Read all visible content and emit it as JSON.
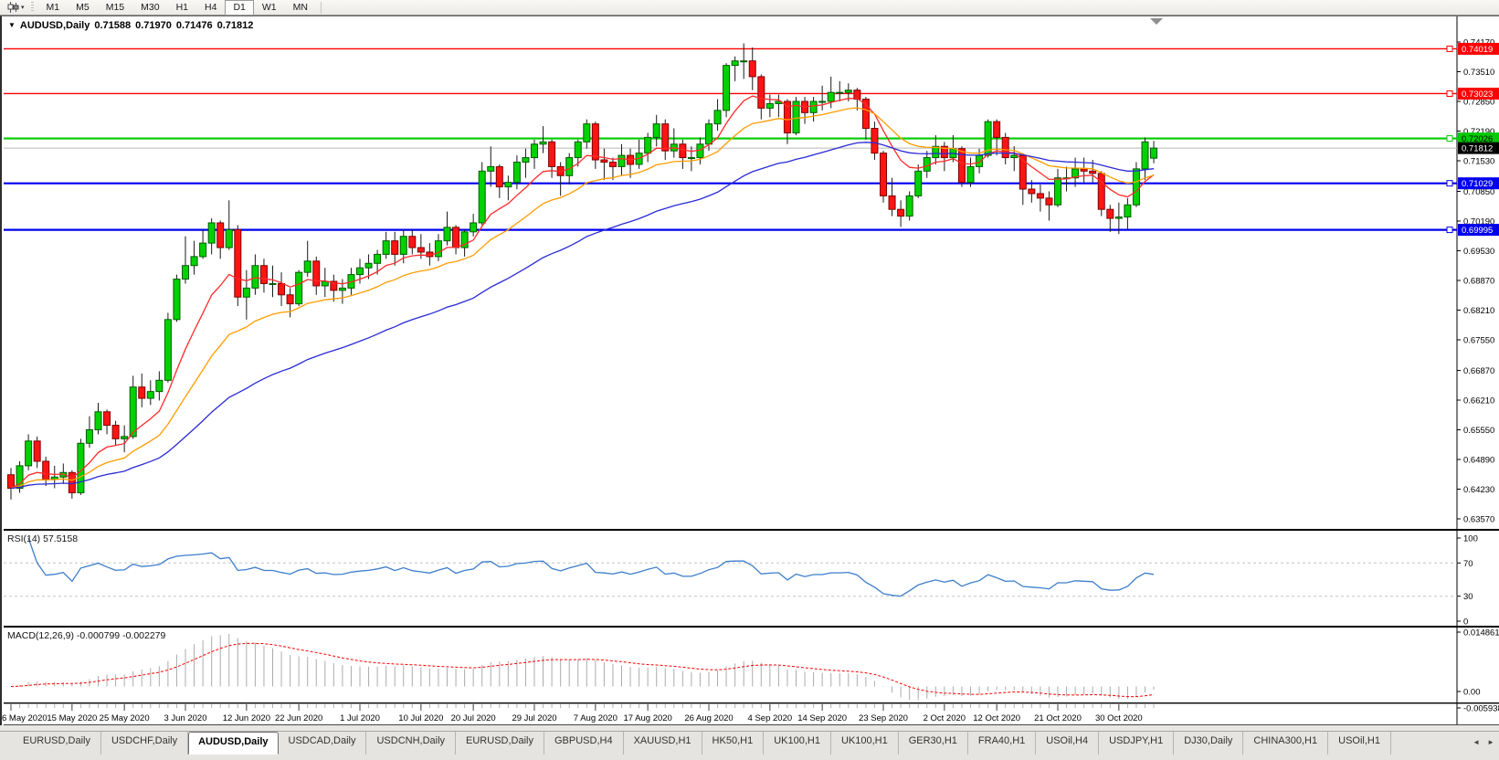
{
  "toolbar": {
    "chart_type_caret": "▾",
    "timeframes": [
      "M1",
      "M5",
      "M15",
      "M30",
      "H1",
      "H4",
      "D1",
      "W1",
      "MN"
    ],
    "active_timeframe": "D1"
  },
  "main_chart": {
    "title": {
      "collapse_icon": "▼",
      "symbol": "AUDUSD,Daily",
      "open": "0.71588",
      "high": "0.71970",
      "low": "0.71476",
      "close": "0.71812"
    },
    "hlines": [
      {
        "value": 0.74019,
        "label": "0.74019",
        "color": "#ff0000",
        "text_color": "#ffffff",
        "width": 1.4
      },
      {
        "value": 0.73023,
        "label": "0.73023",
        "color": "#ff0000",
        "text_color": "#ffffff",
        "width": 1.4
      },
      {
        "value": 0.72026,
        "label": "0.72026",
        "color": "#00cc00",
        "text_color": "#000000",
        "width": 2.2
      },
      {
        "value": 0.71029,
        "label": "0.71029",
        "color": "#0000ee",
        "text_color": "#ffffff",
        "width": 2.2
      },
      {
        "value": 0.69995,
        "label": "0.69995",
        "color": "#0000ee",
        "text_color": "#ffffff",
        "width": 2.2
      }
    ],
    "current_price": {
      "value": 0.71812,
      "label": "0.71812",
      "box_color": "#000000",
      "text_color": "#ffffff",
      "line_color": "#b8b8b8"
    },
    "y_ticks": [
      "0.74170",
      "0.73510",
      "0.72850",
      "0.72190",
      "0.71530",
      "0.70850",
      "0.70190",
      "0.69530",
      "0.68870",
      "0.68210",
      "0.67550",
      "0.66870",
      "0.66210",
      "0.65550",
      "0.64890",
      "0.64230",
      "0.63570"
    ]
  },
  "rsi_panel": {
    "label": "RSI(14) 57.5158",
    "levels": [
      "100",
      "70",
      "30",
      "0"
    ],
    "level_values": [
      100,
      70,
      30,
      0
    ],
    "dashed_levels": [
      70,
      30
    ],
    "line_color": "#3d7ecb"
  },
  "macd_panel": {
    "label": "MACD(12,26,9) -0.000799 -0.002279",
    "levels": [
      "0.014861",
      "0.00",
      "-0.005938"
    ],
    "histogram_color": "#ababab",
    "signal_color": "#ff0000"
  },
  "time_axis": {
    "dates": [
      {
        "label": "6 May 2020",
        "bar": 0
      },
      {
        "label": "15 May 2020",
        "bar": 7
      },
      {
        "label": "25 May 2020",
        "bar": 13
      },
      {
        "label": "3 Jun 2020",
        "bar": 20
      },
      {
        "label": "12 Jun 2020",
        "bar": 27
      },
      {
        "label": "22 Jun 2020",
        "bar": 33
      },
      {
        "label": "1 Jul 2020",
        "bar": 40
      },
      {
        "label": "10 Jul 2020",
        "bar": 47
      },
      {
        "label": "20 Jul 2020",
        "bar": 53
      },
      {
        "label": "29 Jul 2020",
        "bar": 60
      },
      {
        "label": "7 Aug 2020",
        "bar": 67
      },
      {
        "label": "17 Aug 2020",
        "bar": 73
      },
      {
        "label": "26 Aug 2020",
        "bar": 80
      },
      {
        "label": "4 Sep 2020",
        "bar": 87
      },
      {
        "label": "14 Sep 2020",
        "bar": 93
      },
      {
        "label": "23 Sep 2020",
        "bar": 100
      },
      {
        "label": "2 Oct 2020",
        "bar": 107
      },
      {
        "label": "12 Oct 2020",
        "bar": 113
      },
      {
        "label": "21 Oct 2020",
        "bar": 120
      },
      {
        "label": "30 Oct 2020",
        "bar": 127
      }
    ]
  },
  "tab_bar": {
    "tabs": [
      "EURUSD,Daily",
      "USDCHF,Daily",
      "AUDUSD,Daily",
      "USDCAD,Daily",
      "USDCNH,Daily",
      "EURUSD,Daily",
      "GBPUSD,H4",
      "XAUUSD,H1",
      "HK50,H1",
      "UK100,H1",
      "UK100,H1",
      "GER30,H1",
      "FRA40,H1",
      "USOil,H4",
      "USDJPY,H1",
      "DJ30,Daily",
      "CHINA300,H1",
      "USOil,H1"
    ],
    "active_index": 2,
    "scroll_left_glyph": "◄",
    "scroll_right_glyph": "►"
  },
  "chart_data": {
    "type": "candlestick",
    "symbol": "AUDUSD",
    "timeframe": "Daily",
    "up_color": "#00d200",
    "up_border": "#005c00",
    "down_color": "#ff1414",
    "down_border": "#7d0000",
    "wick_color": "#1a1a1a",
    "ma_overlays": [
      {
        "period": 9,
        "color": "#ff2a2a"
      },
      {
        "period": 20,
        "color": "#ff9c00"
      },
      {
        "period": 45,
        "color": "#2a2ad6"
      }
    ],
    "candles": [
      [
        0.6455,
        0.647,
        0.64,
        0.6425
      ],
      [
        0.6425,
        0.6485,
        0.6415,
        0.6475
      ],
      [
        0.6475,
        0.6545,
        0.6465,
        0.653
      ],
      [
        0.653,
        0.654,
        0.647,
        0.6485
      ],
      [
        0.6485,
        0.6495,
        0.643,
        0.6445
      ],
      [
        0.6445,
        0.6475,
        0.6425,
        0.645
      ],
      [
        0.645,
        0.648,
        0.6435,
        0.646
      ],
      [
        0.646,
        0.6465,
        0.6402,
        0.6415
      ],
      [
        0.6415,
        0.6535,
        0.641,
        0.6525
      ],
      [
        0.6525,
        0.6585,
        0.6515,
        0.6555
      ],
      [
        0.6555,
        0.6615,
        0.6545,
        0.6595
      ],
      [
        0.6595,
        0.66,
        0.6545,
        0.6565
      ],
      [
        0.6565,
        0.6575,
        0.652,
        0.6535
      ],
      [
        0.6535,
        0.6565,
        0.6505,
        0.654
      ],
      [
        0.654,
        0.6675,
        0.6535,
        0.665
      ],
      [
        0.665,
        0.668,
        0.6605,
        0.6625
      ],
      [
        0.6625,
        0.6665,
        0.661,
        0.664
      ],
      [
        0.664,
        0.6685,
        0.662,
        0.6665
      ],
      [
        0.6665,
        0.6815,
        0.666,
        0.68
      ],
      [
        0.68,
        0.69,
        0.6795,
        0.689
      ],
      [
        0.689,
        0.6985,
        0.688,
        0.692
      ],
      [
        0.692,
        0.6975,
        0.69,
        0.694
      ],
      [
        0.694,
        0.7,
        0.6935,
        0.697
      ],
      [
        0.697,
        0.7025,
        0.6945,
        0.7015
      ],
      [
        0.7015,
        0.702,
        0.6935,
        0.696
      ],
      [
        0.696,
        0.7065,
        0.6955,
        0.7
      ],
      [
        0.7,
        0.701,
        0.683,
        0.685
      ],
      [
        0.685,
        0.691,
        0.68,
        0.687
      ],
      [
        0.687,
        0.6945,
        0.6855,
        0.692
      ],
      [
        0.692,
        0.6935,
        0.686,
        0.688
      ],
      [
        0.688,
        0.692,
        0.685,
        0.688
      ],
      [
        0.688,
        0.6905,
        0.683,
        0.6855
      ],
      [
        0.6855,
        0.687,
        0.6805,
        0.6835
      ],
      [
        0.6835,
        0.691,
        0.683,
        0.6905
      ],
      [
        0.6905,
        0.6975,
        0.6895,
        0.693
      ],
      [
        0.693,
        0.694,
        0.6855,
        0.6875
      ],
      [
        0.6875,
        0.6915,
        0.685,
        0.6885
      ],
      [
        0.6885,
        0.69,
        0.684,
        0.6865
      ],
      [
        0.6865,
        0.689,
        0.6835,
        0.687
      ],
      [
        0.687,
        0.6915,
        0.6855,
        0.69
      ],
      [
        0.69,
        0.6935,
        0.688,
        0.6915
      ],
      [
        0.6915,
        0.6945,
        0.689,
        0.6925
      ],
      [
        0.6925,
        0.6955,
        0.69,
        0.6945
      ],
      [
        0.6945,
        0.6995,
        0.6935,
        0.6975
      ],
      [
        0.6975,
        0.6995,
        0.692,
        0.6945
      ],
      [
        0.6945,
        0.7,
        0.6925,
        0.6985
      ],
      [
        0.6985,
        0.7,
        0.6945,
        0.696
      ],
      [
        0.696,
        0.699,
        0.6935,
        0.695
      ],
      [
        0.695,
        0.697,
        0.692,
        0.694
      ],
      [
        0.694,
        0.699,
        0.693,
        0.6975
      ],
      [
        0.6975,
        0.704,
        0.6965,
        0.7005
      ],
      [
        0.7005,
        0.701,
        0.6945,
        0.696
      ],
      [
        0.696,
        0.7,
        0.694,
        0.6995
      ],
      [
        0.6995,
        0.7035,
        0.6985,
        0.7015
      ],
      [
        0.7015,
        0.715,
        0.701,
        0.713
      ],
      [
        0.713,
        0.7185,
        0.7095,
        0.714
      ],
      [
        0.714,
        0.7145,
        0.707,
        0.7095
      ],
      [
        0.7095,
        0.712,
        0.7065,
        0.7105
      ],
      [
        0.7105,
        0.7165,
        0.709,
        0.715
      ],
      [
        0.715,
        0.718,
        0.7115,
        0.716
      ],
      [
        0.716,
        0.72,
        0.7135,
        0.719
      ],
      [
        0.719,
        0.723,
        0.717,
        0.7195
      ],
      [
        0.7195,
        0.72,
        0.7115,
        0.714
      ],
      [
        0.714,
        0.715,
        0.7075,
        0.712
      ],
      [
        0.712,
        0.717,
        0.71,
        0.716
      ],
      [
        0.716,
        0.72,
        0.714,
        0.7195
      ],
      [
        0.7195,
        0.7245,
        0.718,
        0.7235
      ],
      [
        0.7235,
        0.724,
        0.7135,
        0.7155
      ],
      [
        0.7155,
        0.718,
        0.711,
        0.715
      ],
      [
        0.715,
        0.716,
        0.711,
        0.714
      ],
      [
        0.714,
        0.719,
        0.712,
        0.7165
      ],
      [
        0.7165,
        0.718,
        0.7115,
        0.7145
      ],
      [
        0.7145,
        0.72,
        0.7135,
        0.717
      ],
      [
        0.717,
        0.7215,
        0.715,
        0.7205
      ],
      [
        0.7205,
        0.7255,
        0.7185,
        0.7235
      ],
      [
        0.7235,
        0.7245,
        0.7155,
        0.7175
      ],
      [
        0.7175,
        0.7225,
        0.716,
        0.719
      ],
      [
        0.719,
        0.72,
        0.7135,
        0.716
      ],
      [
        0.716,
        0.7185,
        0.713,
        0.716
      ],
      [
        0.716,
        0.7205,
        0.7145,
        0.719
      ],
      [
        0.719,
        0.7245,
        0.7175,
        0.7235
      ],
      [
        0.7235,
        0.729,
        0.722,
        0.7265
      ],
      [
        0.7265,
        0.737,
        0.725,
        0.7365
      ],
      [
        0.7365,
        0.7385,
        0.733,
        0.7375
      ],
      [
        0.7375,
        0.7414,
        0.7335,
        0.7375
      ],
      [
        0.7375,
        0.7405,
        0.731,
        0.734
      ],
      [
        0.734,
        0.7345,
        0.7245,
        0.727
      ],
      [
        0.727,
        0.73,
        0.725,
        0.728
      ],
      [
        0.728,
        0.73,
        0.725,
        0.7285
      ],
      [
        0.7285,
        0.729,
        0.719,
        0.7215
      ],
      [
        0.7215,
        0.7295,
        0.721,
        0.7285
      ],
      [
        0.7285,
        0.7295,
        0.7235,
        0.726
      ],
      [
        0.726,
        0.7295,
        0.724,
        0.7285
      ],
      [
        0.7285,
        0.732,
        0.7265,
        0.7285
      ],
      [
        0.7285,
        0.734,
        0.727,
        0.7305
      ],
      [
        0.7305,
        0.733,
        0.7285,
        0.7305
      ],
      [
        0.7305,
        0.7325,
        0.7285,
        0.731
      ],
      [
        0.731,
        0.7315,
        0.7265,
        0.729
      ],
      [
        0.729,
        0.7295,
        0.72,
        0.7225
      ],
      [
        0.7225,
        0.724,
        0.7155,
        0.717
      ],
      [
        0.717,
        0.7175,
        0.706,
        0.7075
      ],
      [
        0.7075,
        0.7115,
        0.703,
        0.7045
      ],
      [
        0.7045,
        0.7065,
        0.7006,
        0.703
      ],
      [
        0.703,
        0.7085,
        0.702,
        0.7075
      ],
      [
        0.7075,
        0.7145,
        0.707,
        0.713
      ],
      [
        0.713,
        0.7175,
        0.7115,
        0.716
      ],
      [
        0.716,
        0.721,
        0.7145,
        0.7185
      ],
      [
        0.7185,
        0.7195,
        0.713,
        0.716
      ],
      [
        0.716,
        0.721,
        0.715,
        0.718
      ],
      [
        0.718,
        0.7185,
        0.7095,
        0.7105
      ],
      [
        0.7105,
        0.716,
        0.7095,
        0.714
      ],
      [
        0.714,
        0.718,
        0.7125,
        0.7165
      ],
      [
        0.7165,
        0.7245,
        0.716,
        0.724
      ],
      [
        0.724,
        0.7245,
        0.7165,
        0.7205
      ],
      [
        0.7205,
        0.7215,
        0.7145,
        0.716
      ],
      [
        0.716,
        0.7185,
        0.713,
        0.7165
      ],
      [
        0.7165,
        0.717,
        0.7055,
        0.709
      ],
      [
        0.709,
        0.711,
        0.706,
        0.708
      ],
      [
        0.708,
        0.71,
        0.704,
        0.707
      ],
      [
        0.707,
        0.7085,
        0.702,
        0.7055
      ],
      [
        0.7055,
        0.7135,
        0.705,
        0.7115
      ],
      [
        0.7115,
        0.714,
        0.7085,
        0.7115
      ],
      [
        0.7115,
        0.716,
        0.7095,
        0.7135
      ],
      [
        0.7135,
        0.716,
        0.7105,
        0.713
      ],
      [
        0.713,
        0.7155,
        0.7105,
        0.7125
      ],
      [
        0.7125,
        0.713,
        0.703,
        0.7045
      ],
      [
        0.7045,
        0.7055,
        0.6995,
        0.7025
      ],
      [
        0.7025,
        0.706,
        0.699,
        0.7028
      ],
      [
        0.7028,
        0.707,
        0.7,
        0.7055
      ],
      [
        0.7055,
        0.715,
        0.705,
        0.7135
      ],
      [
        0.7135,
        0.7205,
        0.711,
        0.7195
      ],
      [
        0.71588,
        0.7197,
        0.71476,
        0.71812
      ]
    ]
  }
}
